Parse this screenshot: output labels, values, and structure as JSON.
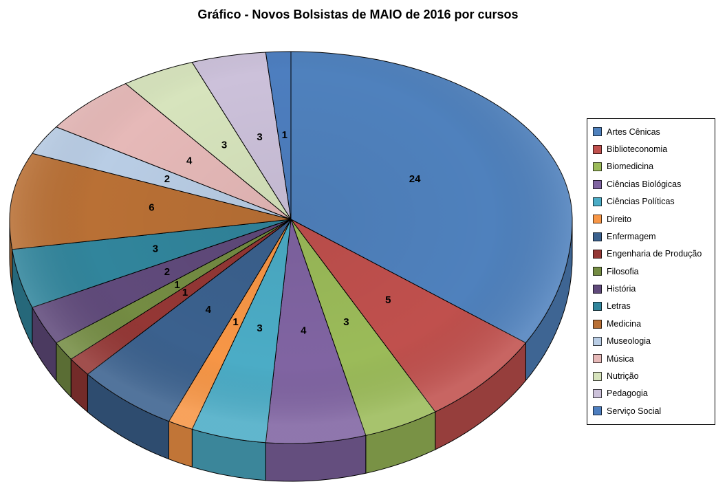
{
  "chart_data": {
    "type": "pie",
    "projection": "3d",
    "title": "Gráfico - Novos Bolsistas de MAIO de 2016 por cursos",
    "legend_position": "right",
    "direction": "clockwise",
    "start_angle_deg": 0,
    "data_labels": "values",
    "total": 70,
    "series": [
      {
        "label": "Artes Cênicas",
        "value": 24,
        "color": "#4F81BD"
      },
      {
        "label": "Biblioteconomia",
        "value": 5,
        "color": "#C0504D"
      },
      {
        "label": "Biomedicina",
        "value": 3,
        "color": "#9BBB59"
      },
      {
        "label": "Ciências Biológicas",
        "value": 4,
        "color": "#8064A2"
      },
      {
        "label": "Ciências Políticas",
        "value": 3,
        "color": "#4BACC6"
      },
      {
        "label": "Direito",
        "value": 1,
        "color": "#F79646"
      },
      {
        "label": "Enfermagem",
        "value": 4,
        "color": "#3B618E"
      },
      {
        "label": "Engenharia de Produção",
        "value": 1,
        "color": "#943735"
      },
      {
        "label": "Filosofia",
        "value": 1,
        "color": "#748C43"
      },
      {
        "label": "História",
        "value": 2,
        "color": "#604A7B"
      },
      {
        "label": "Letras",
        "value": 3,
        "color": "#31859C"
      },
      {
        "label": "Medicina",
        "value": 6,
        "color": "#B97035"
      },
      {
        "label": "Museologia",
        "value": 2,
        "color": "#B9CDE5"
      },
      {
        "label": "Música",
        "value": 4,
        "color": "#E6B9B8"
      },
      {
        "label": "Nutrição",
        "value": 3,
        "color": "#D7E4BD"
      },
      {
        "label": "Pedagogia",
        "value": 3,
        "color": "#CCC1DA"
      },
      {
        "label": "Serviço Social",
        "value": 1,
        "color": "#4D7EBF"
      }
    ]
  }
}
